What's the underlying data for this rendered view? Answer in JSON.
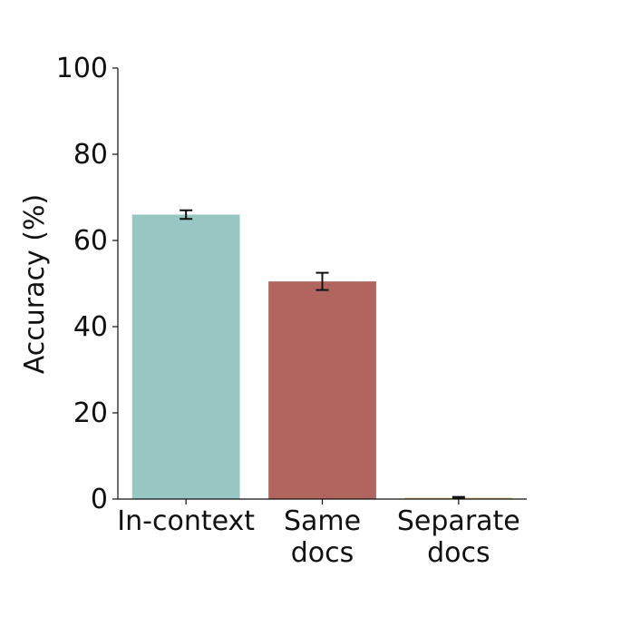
{
  "chart_data": {
    "type": "bar",
    "title": "",
    "xlabel": "",
    "ylabel": "Accuracy (%)",
    "ylim": [
      0,
      100
    ],
    "yticks": [
      0,
      20,
      40,
      60,
      80,
      100
    ],
    "grid": false,
    "categories": [
      {
        "label_lines": [
          "In-context"
        ]
      },
      {
        "label_lines": [
          "Same",
          "docs"
        ]
      },
      {
        "label_lines": [
          "Separate",
          "docs"
        ]
      }
    ],
    "values": [
      66,
      50.5,
      0.3
    ],
    "errors": [
      [
        65,
        67
      ],
      [
        48.5,
        52.5
      ],
      [
        0.1,
        0.5
      ]
    ],
    "colors": [
      "#98c6c3",
      "#b2655f",
      "#d6c27a"
    ]
  }
}
